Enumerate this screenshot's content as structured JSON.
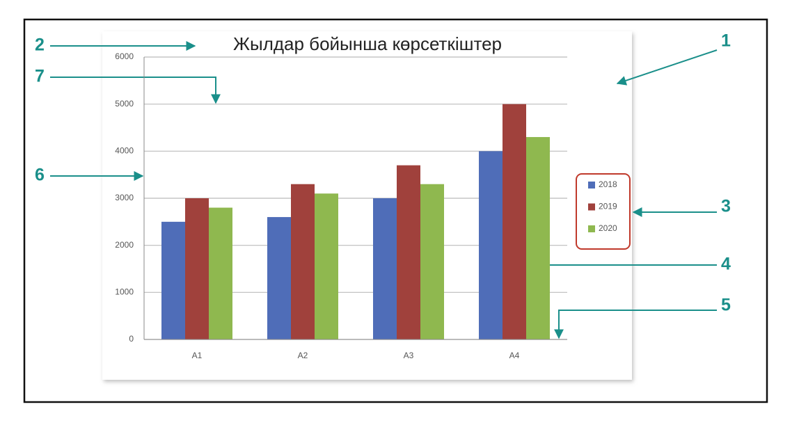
{
  "chart_data": {
    "type": "bar",
    "title": "Жылдар бойынша көрсеткіштер",
    "categories": [
      "A1",
      "A2",
      "A3",
      "A4"
    ],
    "series": [
      {
        "name": "2018",
        "color": "#4f6db8",
        "values": [
          2500,
          2600,
          3000,
          4000
        ]
      },
      {
        "name": "2019",
        "color": "#a0413c",
        "values": [
          3000,
          3300,
          3700,
          5000
        ]
      },
      {
        "name": "2020",
        "color": "#8fb84f",
        "values": [
          2800,
          3100,
          3300,
          4300
        ]
      }
    ],
    "ylim": [
      0,
      6000
    ],
    "yticks": [
      0,
      1000,
      2000,
      3000,
      4000,
      5000,
      6000
    ],
    "grid": true,
    "legend": "right",
    "annotations": [
      "2",
      "7",
      "6",
      "1",
      "3",
      "4",
      "5"
    ]
  }
}
